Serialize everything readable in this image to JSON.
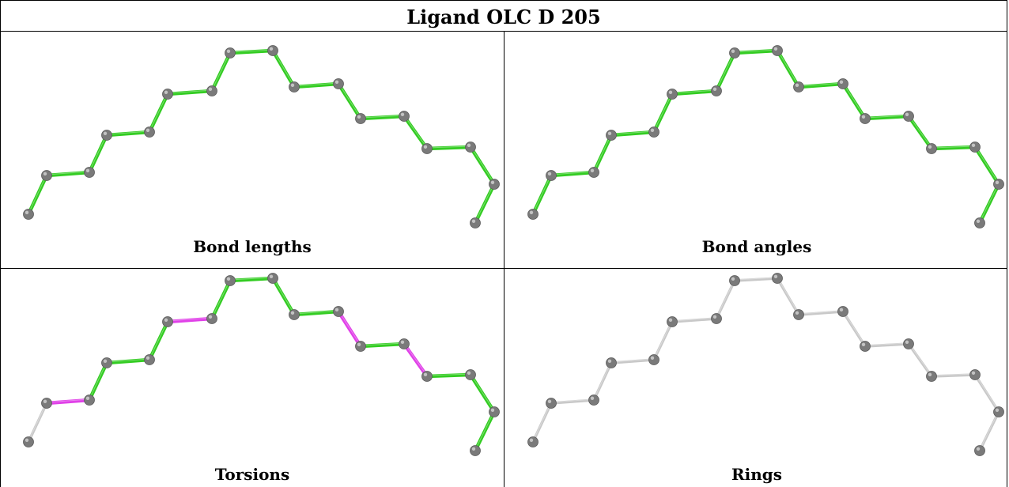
{
  "title": "Ligand OLC D 205",
  "colors": {
    "ok_bond": "#33cc22",
    "outlier_bond": "#e040e8",
    "not_assessed_bond": "#c8c8c8",
    "atom": "#7a7a7a"
  },
  "panels": [
    {
      "id": "bond-lengths",
      "caption": "Bond lengths",
      "bond_status": [
        "ok",
        "ok",
        "ok",
        "ok",
        "ok",
        "ok",
        "ok",
        "ok",
        "ok",
        "ok",
        "ok",
        "ok",
        "ok",
        "ok",
        "ok",
        "ok",
        "ok",
        "ok"
      ]
    },
    {
      "id": "bond-angles",
      "caption": "Bond angles",
      "bond_status": [
        "ok",
        "ok",
        "ok",
        "ok",
        "ok",
        "ok",
        "ok",
        "ok",
        "ok",
        "ok",
        "ok",
        "ok",
        "ok",
        "ok",
        "ok",
        "ok",
        "ok",
        "ok"
      ]
    },
    {
      "id": "torsions",
      "caption": "Torsions",
      "bond_status": [
        "none",
        "outlier",
        "ok",
        "ok",
        "ok",
        "outlier",
        "ok",
        "ok",
        "ok",
        "ok",
        "outlier",
        "ok",
        "outlier",
        "ok",
        "ok",
        "ok",
        "ok",
        "none"
      ]
    },
    {
      "id": "rings",
      "caption": "Rings",
      "bond_status": [
        "none",
        "none",
        "none",
        "none",
        "none",
        "none",
        "none",
        "none",
        "none",
        "none",
        "none",
        "none",
        "none",
        "none",
        "none",
        "none",
        "none",
        "none"
      ]
    }
  ]
}
